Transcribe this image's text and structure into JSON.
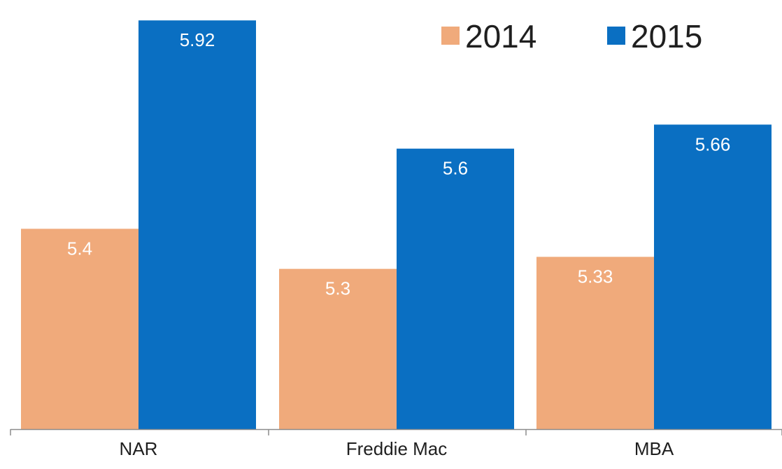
{
  "chart_data": {
    "type": "bar",
    "categories": [
      "NAR",
      "Freddie Mac",
      "MBA"
    ],
    "series": [
      {
        "name": "2014",
        "values": [
          5.4,
          5.3,
          5.33
        ],
        "color": "#f0aa7b"
      },
      {
        "name": "2015",
        "values": [
          5.92,
          5.6,
          5.66
        ],
        "color": "#0a6fc2"
      }
    ],
    "data_labels": {
      "2014": [
        "5.4",
        "5.3",
        "5.33"
      ],
      "2015": [
        "5.92",
        "5.6",
        "5.66"
      ]
    },
    "title": "",
    "xlabel": "",
    "ylabel": "",
    "ylim": [
      4.9,
      5.95
    ],
    "grid": false,
    "legend_position": "top-right",
    "axis_color": "#8c8c8c",
    "label_color": "#ffffff",
    "text_color": "#1f1f1f"
  }
}
